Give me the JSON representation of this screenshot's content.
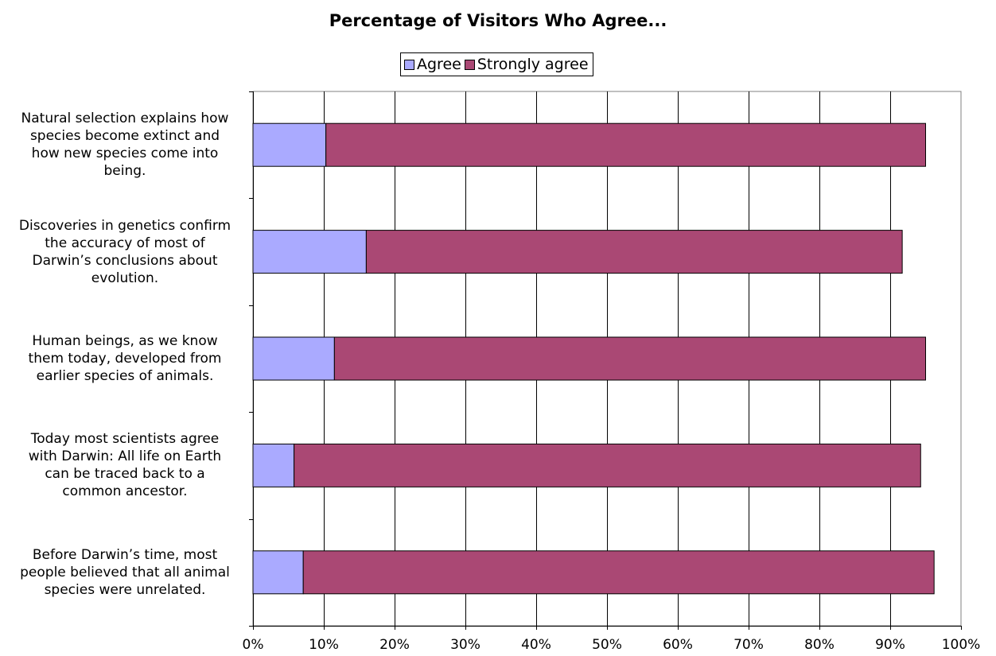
{
  "chart_data": {
    "type": "bar",
    "orientation": "horizontal",
    "stacked": true,
    "title": "Percentage of Visitors Who Agree...",
    "categories": [
      "Natural selection explains how species become extinct and how new species come into being.",
      "Discoveries in genetics confirm the accuracy of most of Darwin’s conclusions about evolution.",
      "Human beings, as we know them today, developed from earlier species of animals.",
      "Today most scientists agree with Darwin: All life on Earth can be traced back to a common ancestor.",
      "Before Darwin’s time, most people believed that all animal species were unrelated."
    ],
    "category_lines": [
      [
        "Natural selection explains how",
        "species become extinct and",
        "how new species come into",
        "being."
      ],
      [
        "Discoveries in genetics confirm",
        "the accuracy of most of",
        "Darwin’s conclusions about",
        "evolution."
      ],
      [
        "Human beings, as we know",
        "them today, developed from",
        "earlier species of animals."
      ],
      [
        "Today most scientists agree",
        "with Darwin: All life on Earth",
        "can be traced back to a",
        "common ancestor."
      ],
      [
        "Before Darwin’s time, most",
        "people believed that all animal",
        "species were unrelated."
      ]
    ],
    "series": [
      {
        "name": "Agree",
        "color": "#aaaaff",
        "values": [
          10.3,
          16.0,
          11.5,
          5.8,
          7.1
        ]
      },
      {
        "name": "Strongly agree",
        "color": "#aa4874",
        "values": [
          84.7,
          75.7,
          83.5,
          88.5,
          89.1
        ]
      }
    ],
    "x_ticks": [
      "0%",
      "10%",
      "20%",
      "30%",
      "40%",
      "50%",
      "60%",
      "70%",
      "80%",
      "90%",
      "100%"
    ],
    "xlim": [
      0,
      100
    ],
    "grid": true,
    "legend_position": "top-center"
  }
}
